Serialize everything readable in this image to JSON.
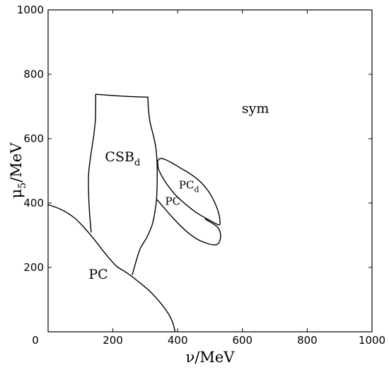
{
  "chart_data": {
    "type": "phase-diagram",
    "xlabel": "ν/MeV",
    "ylabel_main": "μ",
    "ylabel_sub": "5",
    "ylabel_tail": "/MeV",
    "xlim": [
      0,
      1000
    ],
    "ylim": [
      0,
      1000
    ],
    "xticks": [
      0,
      200,
      400,
      600,
      800,
      1000
    ],
    "yticks": [
      200,
      400,
      600,
      800,
      1000
    ],
    "xtick_labels": [
      "0",
      "200",
      "400",
      "600",
      "800",
      "1000"
    ],
    "ytick_labels": [
      "200",
      "400",
      "600",
      "800",
      "1000"
    ],
    "grid": false,
    "regions": [
      {
        "id": "sym",
        "label": "sym",
        "sub": "",
        "x": 640,
        "y": 680,
        "size": 19
      },
      {
        "id": "csbd",
        "label": "CSB",
        "sub": "d",
        "x": 230,
        "y": 530,
        "size": 19
      },
      {
        "id": "pcd",
        "label": "PC",
        "sub": "d",
        "x": 435,
        "y": 445,
        "size": 15
      },
      {
        "id": "pc-small",
        "label": "PC",
        "sub": "",
        "x": 385,
        "y": 395,
        "size": 15
      },
      {
        "id": "pc-low",
        "label": "PC",
        "sub": "",
        "x": 155,
        "y": 165,
        "size": 19
      }
    ],
    "boundaries": [
      {
        "name": "boundary-pc-lower",
        "points": [
          [
            0,
            395
          ],
          [
            40,
            380
          ],
          [
            80,
            355
          ],
          [
            110,
            325
          ],
          [
            140,
            290
          ],
          [
            175,
            245
          ],
          [
            210,
            205
          ],
          [
            245,
            182
          ],
          [
            280,
            155
          ],
          [
            315,
            125
          ],
          [
            345,
            92
          ],
          [
            370,
            58
          ],
          [
            385,
            28
          ],
          [
            392,
            0
          ]
        ]
      },
      {
        "name": "boundary-csbd-left",
        "points": [
          [
            147,
            738
          ],
          [
            147,
            705
          ],
          [
            146,
            660
          ],
          [
            141,
            610
          ],
          [
            132,
            550
          ],
          [
            125,
            490
          ],
          [
            125,
            430
          ],
          [
            128,
            370
          ],
          [
            133,
            310
          ]
        ]
      },
      {
        "name": "boundary-csbd-top",
        "points": [
          [
            147,
            738
          ],
          [
            230,
            732
          ],
          [
            308,
            729
          ]
        ]
      },
      {
        "name": "boundary-csbd-right",
        "points": [
          [
            308,
            729
          ],
          [
            310,
            690
          ],
          [
            315,
            650
          ],
          [
            325,
            610
          ],
          [
            333,
            570
          ],
          [
            336,
            530
          ],
          [
            337,
            490
          ],
          [
            336,
            440
          ],
          [
            333,
            395
          ],
          [
            322,
            335
          ],
          [
            303,
            290
          ],
          [
            283,
            255
          ],
          [
            260,
            178
          ]
        ]
      },
      {
        "name": "boundary-pcd-lobe",
        "points": [
          [
            338,
            530
          ],
          [
            345,
            538
          ],
          [
            362,
            535
          ],
          [
            385,
            523
          ],
          [
            410,
            508
          ],
          [
            440,
            490
          ],
          [
            472,
            464
          ],
          [
            498,
            432
          ],
          [
            515,
            400
          ],
          [
            526,
            370
          ],
          [
            531,
            340
          ],
          [
            527,
            332
          ],
          [
            510,
            340
          ],
          [
            485,
            354
          ],
          [
            455,
            372
          ],
          [
            425,
            396
          ],
          [
            398,
            420
          ],
          [
            375,
            447
          ],
          [
            355,
            477
          ],
          [
            341,
            505
          ],
          [
            338,
            530
          ]
        ]
      },
      {
        "name": "boundary-pc-lobe",
        "points": [
          [
            337,
            410
          ],
          [
            358,
            385
          ],
          [
            380,
            360
          ],
          [
            405,
            333
          ],
          [
            432,
            308
          ],
          [
            460,
            288
          ],
          [
            487,
            276
          ],
          [
            510,
            270
          ],
          [
            525,
            274
          ],
          [
            532,
            290
          ],
          [
            531,
            310
          ],
          [
            523,
            325
          ],
          [
            510,
            335
          ],
          [
            485,
            350
          ]
        ]
      }
    ]
  }
}
